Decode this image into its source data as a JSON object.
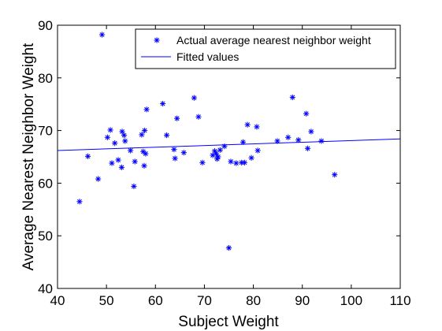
{
  "chart_data": {
    "type": "scatter",
    "xlabel": "Subject Weight",
    "ylabel": "Average Nearest Neighbor Weight",
    "xlim": [
      40,
      110
    ],
    "ylim": [
      40,
      90
    ],
    "xticks": [
      40,
      50,
      60,
      70,
      80,
      90,
      100,
      110
    ],
    "yticks": [
      40,
      50,
      60,
      70,
      80,
      90
    ],
    "grid": false,
    "legend_position": "top-right",
    "colors": {
      "series": "#0000ff",
      "axis": "#000000",
      "background": "#ffffff"
    },
    "series": [
      {
        "name": "Actual average nearest neighbor weight",
        "type": "scatter",
        "marker": "asterisk",
        "points": [
          [
            44.5,
            56.5
          ],
          [
            46.2,
            65.1
          ],
          [
            48.3,
            60.8
          ],
          [
            49.1,
            88.2
          ],
          [
            50.2,
            68.7
          ],
          [
            50.8,
            70.1
          ],
          [
            51.1,
            63.8
          ],
          [
            51.7,
            67.6
          ],
          [
            52.4,
            64.4
          ],
          [
            53.2,
            69.8
          ],
          [
            53.6,
            69.1
          ],
          [
            53.1,
            63.0
          ],
          [
            53.8,
            68.0
          ],
          [
            54.9,
            66.2
          ],
          [
            55.6,
            59.4
          ],
          [
            55.8,
            64.1
          ],
          [
            57.2,
            69.2
          ],
          [
            57.5,
            66.0
          ],
          [
            57.7,
            63.3
          ],
          [
            57.8,
            70.0
          ],
          [
            58.0,
            65.6
          ],
          [
            58.2,
            74.0
          ],
          [
            61.5,
            75.1
          ],
          [
            62.3,
            69.1
          ],
          [
            63.8,
            66.4
          ],
          [
            64.0,
            64.7
          ],
          [
            64.4,
            72.3
          ],
          [
            65.8,
            65.8
          ],
          [
            67.9,
            76.2
          ],
          [
            68.8,
            72.6
          ],
          [
            69.6,
            63.9
          ],
          [
            71.7,
            65.3
          ],
          [
            72.1,
            66.1
          ],
          [
            72.4,
            65.6
          ],
          [
            72.6,
            64.6
          ],
          [
            72.8,
            65.0
          ],
          [
            73.2,
            66.3
          ],
          [
            74.1,
            67.0
          ],
          [
            75.0,
            47.7
          ],
          [
            75.4,
            64.1
          ],
          [
            76.5,
            63.8
          ],
          [
            77.6,
            63.9
          ],
          [
            77.9,
            67.8
          ],
          [
            78.2,
            63.9
          ],
          [
            78.8,
            71.1
          ],
          [
            79.6,
            64.8
          ],
          [
            80.7,
            70.7
          ],
          [
            80.9,
            66.2
          ],
          [
            84.9,
            68.0
          ],
          [
            87.1,
            68.7
          ],
          [
            88.0,
            76.3
          ],
          [
            89.2,
            68.2
          ],
          [
            90.8,
            73.2
          ],
          [
            91.1,
            66.6
          ],
          [
            91.8,
            69.8
          ],
          [
            93.9,
            68.0
          ],
          [
            96.6,
            61.6
          ]
        ]
      },
      {
        "name": "Fitted values",
        "type": "line",
        "x": [
          40,
          110
        ],
        "y": [
          66.2,
          68.4
        ]
      }
    ]
  }
}
